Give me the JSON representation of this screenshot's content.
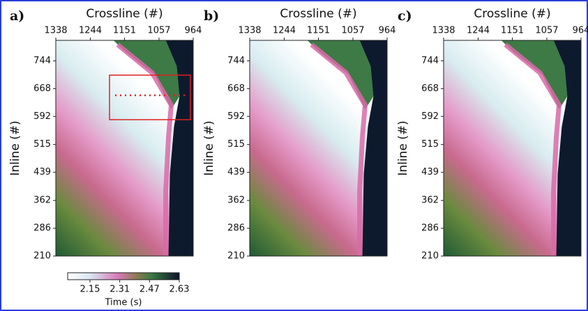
{
  "chart_data": [
    {
      "type": "heatmap",
      "panel_label": "a)",
      "xlabel": "Crossline (#)",
      "ylabel": "Inline (#)",
      "xlim": [
        1338,
        964
      ],
      "xticks": [
        1338,
        1244,
        1151,
        1057,
        964
      ],
      "ylim": [
        210,
        800
      ],
      "yticks": [
        210,
        286,
        362,
        439,
        515,
        592,
        668,
        744
      ],
      "colorbar": {
        "label": "Time (s)",
        "lim": [
          2.03,
          2.63
        ],
        "ticks": [
          2.15,
          2.31,
          2.47,
          2.63
        ]
      }
    },
    {
      "type": "heatmap",
      "panel_label": "b)",
      "xlabel": "Crossline (#)",
      "ylabel": "Inline (#)",
      "xlim": [
        1338,
        964
      ],
      "xticks": [
        1338,
        1244,
        1151,
        1057,
        964
      ],
      "ylim": [
        210,
        800
      ],
      "yticks": [
        210,
        286,
        362,
        439,
        515,
        592,
        668,
        744
      ]
    },
    {
      "type": "heatmap",
      "panel_label": "c)",
      "xlabel": "Crossline (#)",
      "ylabel": "Inline (#)",
      "xlim": [
        1338,
        964
      ],
      "xticks": [
        1338,
        1244,
        1151,
        1057,
        964
      ],
      "ylim": [
        210,
        800
      ],
      "yticks": [
        210,
        286,
        362,
        439,
        515,
        592,
        668,
        744
      ]
    }
  ]
}
